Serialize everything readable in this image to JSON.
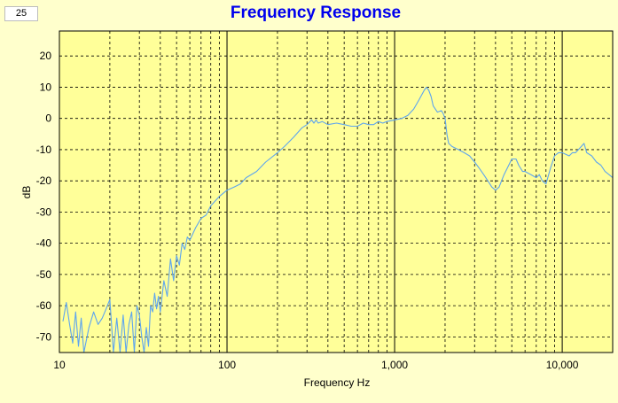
{
  "counter": "25",
  "chart_data": {
    "type": "line",
    "title": "Frequency Response",
    "xlabel": "Frequency Hz",
    "ylabel": "dB",
    "xscale": "log",
    "xlim": [
      10,
      20000
    ],
    "ylim": [
      -75,
      28
    ],
    "xticks": [
      10,
      100,
      1000,
      10000
    ],
    "xtick_labels": [
      "10",
      "100",
      "1,000",
      "10,000"
    ],
    "yticks": [
      20,
      10,
      0,
      -10,
      -20,
      -30,
      -40,
      -50,
      -60,
      -70
    ],
    "ytick_labels": [
      "20",
      "10",
      "0",
      "-10",
      "-20",
      "-30",
      "-40",
      "-50",
      "-60",
      "-70"
    ],
    "grid": true,
    "colors": {
      "background": "#ffffcc",
      "plot_area": "#ffff99",
      "line": "#5ea5ee",
      "title": "#0000ee"
    },
    "series": [
      {
        "x": [
          10.5,
          11,
          11.5,
          12,
          12.5,
          13,
          13.5,
          14,
          15,
          16,
          17,
          18,
          19,
          20,
          21,
          22,
          23,
          24,
          25,
          26,
          27,
          28,
          29,
          30,
          31,
          32,
          33,
          34,
          35,
          36,
          37,
          38,
          39,
          40,
          42,
          44,
          46,
          48,
          50,
          52,
          54,
          56,
          58,
          60,
          65,
          70,
          75,
          80,
          90,
          100,
          110,
          120,
          130,
          150,
          170,
          200,
          220,
          250,
          280,
          300,
          320,
          330,
          340,
          350,
          370,
          400,
          450,
          500,
          550,
          600,
          650,
          700,
          750,
          800,
          850,
          900,
          1000,
          1100,
          1200,
          1300,
          1400,
          1500,
          1550,
          1600,
          1650,
          1700,
          1800,
          1900,
          1950,
          2000,
          2050,
          2100,
          2200,
          2400,
          2600,
          2800,
          3000,
          3200,
          3400,
          3600,
          3800,
          4000,
          4200,
          4500,
          4800,
          5000,
          5300,
          5500,
          5800,
          6000,
          6500,
          7000,
          7300,
          7600,
          8000,
          8500,
          9000,
          9500,
          10000,
          10500,
          11000,
          11500,
          12000,
          12500,
          13000,
          13500,
          14000,
          15000,
          16000,
          17000,
          18000,
          19000,
          20000
        ],
        "y": [
          -65,
          -59,
          -66,
          -72,
          -62,
          -73,
          -64,
          -75,
          -67,
          -62,
          -66,
          -64,
          -61,
          -58,
          -75,
          -64,
          -75,
          -63,
          -75,
          -66,
          -62,
          -75,
          -60,
          -63,
          -70,
          -75,
          -67,
          -73,
          -60,
          -62,
          -56,
          -61,
          -57,
          -62,
          -52,
          -57,
          -45,
          -52,
          -44,
          -47,
          -40,
          -42,
          -38,
          -39,
          -35,
          -32,
          -31,
          -28,
          -25,
          -23,
          -22,
          -21,
          -19,
          -17,
          -14,
          -11,
          -9,
          -6,
          -3,
          -2,
          -0.5,
          -1.5,
          -0.5,
          -1.5,
          -1,
          -2,
          -1.5,
          -2,
          -2.5,
          -2.5,
          -1.5,
          -2,
          -2,
          -1,
          -1.5,
          -1,
          -0.5,
          0,
          1,
          3,
          6,
          9,
          10,
          9,
          7,
          4,
          2,
          2.5,
          1.5,
          0,
          -5,
          -8,
          -9,
          -10,
          -11,
          -12,
          -14,
          -16,
          -18,
          -20,
          -22,
          -23,
          -22,
          -18,
          -15,
          -13,
          -13,
          -15,
          -17,
          -17,
          -18,
          -19,
          -18,
          -20,
          -21,
          -16,
          -12,
          -11,
          -11,
          -11.5,
          -12,
          -11,
          -11,
          -10,
          -9,
          -8,
          -11,
          -12,
          -14,
          -15,
          -17,
          -18,
          -19
        ]
      }
    ]
  }
}
